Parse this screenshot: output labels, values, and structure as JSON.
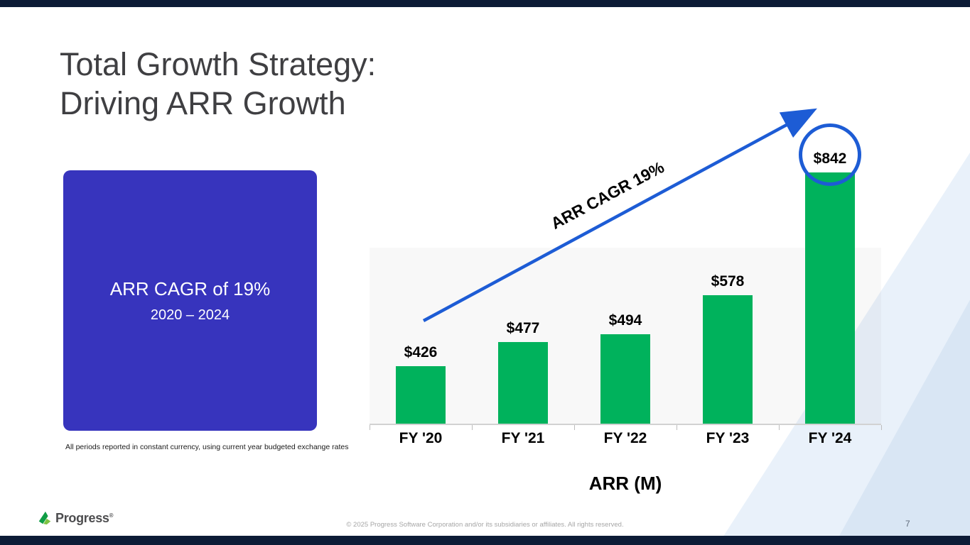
{
  "slide": {
    "title": {
      "line1": "Total Growth Strategy:",
      "line2": "Driving ARR Growth"
    },
    "callout": {
      "heading": "ARR CAGR of 19%",
      "subheading": "2020 – 2024"
    },
    "footnote": "All periods reported in constant currency, using current year budgeted exchange rates",
    "arrow_label": "ARR CAGR 19%",
    "footer": {
      "logo_text": "Progress",
      "registered_mark": "®",
      "copyright": "© 2025 Progress Software Corporation and/or its subsidiaries or affiliates. All rights reserved.",
      "page_number": "7"
    }
  },
  "chart_data": {
    "type": "bar",
    "title": "ARR (M)",
    "xlabel": "ARR (M)",
    "ylabel": "",
    "categories": [
      "FY '20",
      "FY '21",
      "FY '22",
      "FY '23",
      "FY '24"
    ],
    "values": [
      426,
      477,
      494,
      578,
      842
    ],
    "data_labels": [
      "$426",
      "$477",
      "$494",
      "$578",
      "$842"
    ],
    "bar_color": "#00b25c",
    "annotation": {
      "text": "ARR CAGR 19%",
      "type": "trend-arrow"
    },
    "highlight": {
      "category": "FY '24",
      "value": 842,
      "style": "circled"
    },
    "axis": {
      "baseline_value": 300,
      "max_value": 850,
      "gridlines": false
    },
    "legend": false
  },
  "colors": {
    "navy_strip": "#0c1b36",
    "callout_bg": "#3734bd",
    "bar_green": "#00b25c",
    "accent_blue": "#1d5cd5",
    "title_gray": "#3f3f42",
    "decor_light": "#e9f1fa",
    "decor_mid": "#d9e6f4"
  }
}
